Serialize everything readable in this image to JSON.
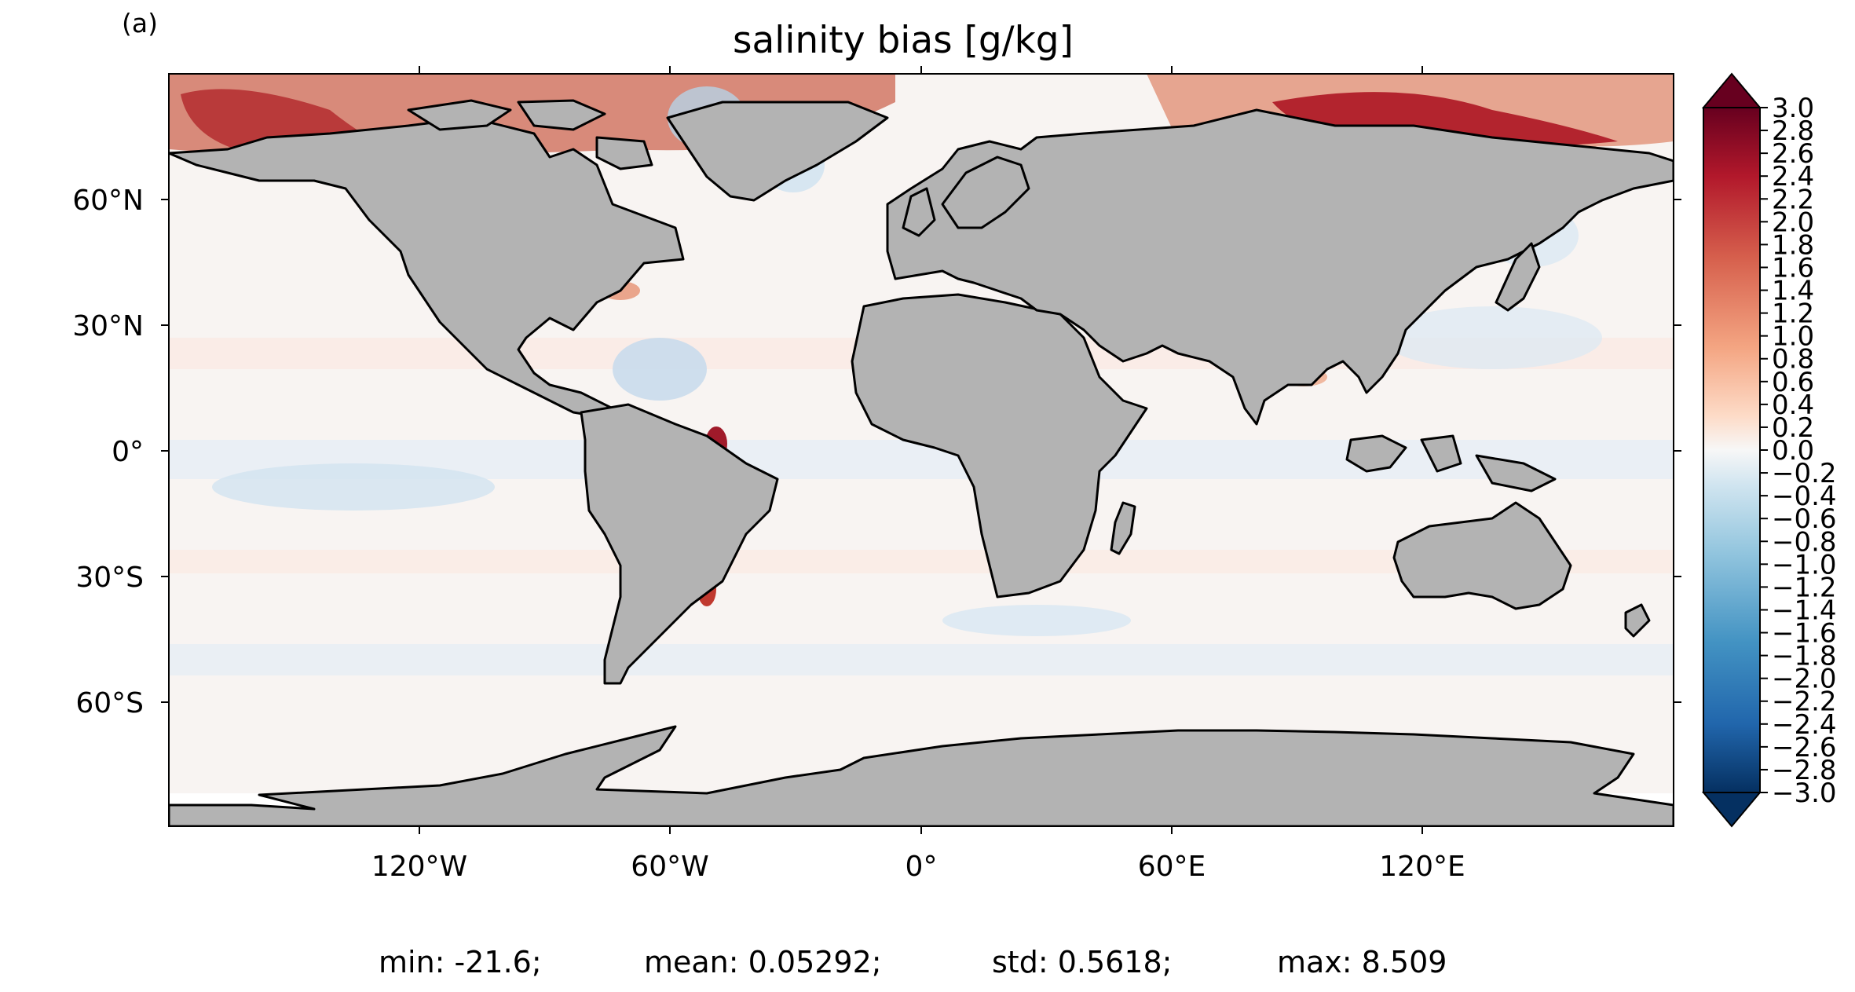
{
  "panel_label": "(a)",
  "title": "salinity bias [g/kg]",
  "map": {
    "projection": "PlateCarree",
    "land_color": "#b3b3b3",
    "coastline_color": "#000000",
    "lat_tick_labels": [
      "60°N",
      "30°N",
      "0°",
      "30°S",
      "60°S"
    ],
    "lon_tick_labels": [
      "120°W",
      "60°W",
      "0°",
      "60°E",
      "120°E"
    ]
  },
  "colorbar": {
    "colormap": "RdBu_r",
    "min": -3.0,
    "max": 3.0,
    "extend": "both",
    "tick_labels": [
      "3.0",
      "2.8",
      "2.6",
      "2.4",
      "2.2",
      "2.0",
      "1.8",
      "1.6",
      "1.4",
      "1.2",
      "1.0",
      "0.8",
      "0.6",
      "0.4",
      "0.2",
      "0.0",
      "−0.2",
      "−0.4",
      "−0.6",
      "−0.8",
      "−1.0",
      "−1.2",
      "−1.4",
      "−1.6",
      "−1.8",
      "−2.0",
      "−2.2",
      "−2.4",
      "−2.6",
      "−2.8",
      "−3.0"
    ]
  },
  "stats": {
    "min": "min: -21.6;",
    "mean": "mean: 0.05292;",
    "std": "std: 0.5618;",
    "max": "max: 8.509"
  }
}
